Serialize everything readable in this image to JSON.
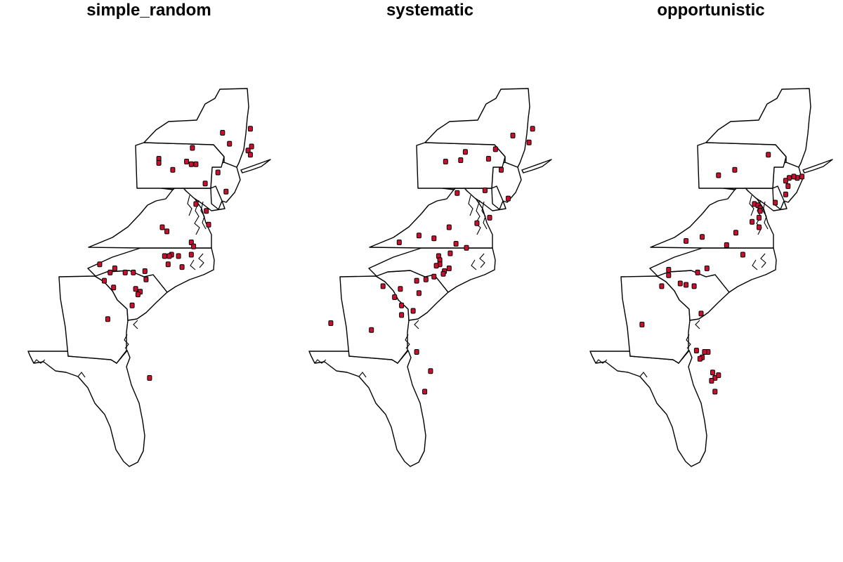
{
  "point_color": "#c8102e",
  "panels": [
    {
      "title": "simple_random",
      "points": [
        [
          -74.3,
          44.5
        ],
        [
          -71.9,
          44.8
        ],
        [
          -73.7,
          43.7
        ],
        [
          -71.8,
          43.5
        ],
        [
          -72.1,
          43.2
        ],
        [
          -71.9,
          42.9
        ],
        [
          -76.9,
          43.4
        ],
        [
          -79.8,
          42.6
        ],
        [
          -79.8,
          42.3
        ],
        [
          -77.4,
          42.4
        ],
        [
          -77.0,
          42.2
        ],
        [
          -76.6,
          42.2
        ],
        [
          -78.6,
          41.8
        ],
        [
          -74.7,
          41.6
        ],
        [
          -75.8,
          40.8
        ],
        [
          -74.0,
          40.2
        ],
        [
          -76.6,
          39.3
        ],
        [
          -75.7,
          38.8
        ],
        [
          -75.5,
          37.8
        ],
        [
          -79.5,
          37.6
        ],
        [
          -79.1,
          37.3
        ],
        [
          -77.0,
          36.5
        ],
        [
          -76.8,
          36.2
        ],
        [
          -78.7,
          35.6
        ],
        [
          -79.3,
          35.5
        ],
        [
          -78.9,
          35.5
        ],
        [
          -78.1,
          35.5
        ],
        [
          -77.0,
          35.6
        ],
        [
          -79.0,
          34.9
        ],
        [
          -77.8,
          34.7
        ],
        [
          -84.9,
          34.9
        ],
        [
          -83.6,
          34.6
        ],
        [
          -82.0,
          34.3
        ],
        [
          -81.0,
          34.4
        ],
        [
          -82.7,
          34.3
        ],
        [
          -84.0,
          34.3
        ],
        [
          -84.5,
          33.7
        ],
        [
          -83.7,
          33.2
        ],
        [
          -80.9,
          33.8
        ],
        [
          -81.8,
          33.1
        ],
        [
          -81.4,
          32.9
        ],
        [
          -81.6,
          32.7
        ],
        [
          -82.1,
          31.9
        ],
        [
          -84.2,
          30.9
        ],
        [
          -80.6,
          26.6
        ]
      ]
    },
    {
      "title": "systematic",
      "points": [
        [
          -71.8,
          44.8
        ],
        [
          -73.5,
          44.3
        ],
        [
          -72.1,
          43.8
        ],
        [
          -75.0,
          43.3
        ],
        [
          -77.6,
          43.1
        ],
        [
          -79.3,
          42.4
        ],
        [
          -78.0,
          42.5
        ],
        [
          -75.6,
          42.6
        ],
        [
          -74.5,
          41.8
        ],
        [
          -75.9,
          40.3
        ],
        [
          -78.3,
          40.1
        ],
        [
          -73.9,
          39.7
        ],
        [
          -75.5,
          38.3
        ],
        [
          -76.6,
          37.9
        ],
        [
          -79.0,
          37.6
        ],
        [
          -81.6,
          37.0
        ],
        [
          -80.3,
          36.8
        ],
        [
          -83.3,
          36.5
        ],
        [
          -78.4,
          36.4
        ],
        [
          -77.5,
          36.1
        ],
        [
          -78.9,
          35.7
        ],
        [
          -79.9,
          35.5
        ],
        [
          -79.8,
          35.2
        ],
        [
          -79.8,
          34.9
        ],
        [
          -80.1,
          34.8
        ],
        [
          -79.0,
          34.6
        ],
        [
          -79.4,
          34.4
        ],
        [
          -79.5,
          34.2
        ],
        [
          -80.3,
          34.0
        ],
        [
          -81.0,
          33.8
        ],
        [
          -81.8,
          33.7
        ],
        [
          -84.7,
          33.3
        ],
        [
          -83.2,
          33.1
        ],
        [
          -81.6,
          32.8
        ],
        [
          -83.7,
          32.5
        ],
        [
          -83.1,
          31.9
        ],
        [
          -82.1,
          31.5
        ],
        [
          -83.1,
          31.2
        ],
        [
          -89.2,
          30.6
        ],
        [
          -85.7,
          30.1
        ],
        [
          -81.8,
          28.5
        ],
        [
          -80.6,
          27.1
        ],
        [
          -81.1,
          25.6
        ]
      ]
    },
    {
      "title": "opportunistic",
      "points": [
        [
          -75.7,
          42.9
        ],
        [
          -78.6,
          41.8
        ],
        [
          -80.0,
          41.4
        ],
        [
          -72.8,
          41.3
        ],
        [
          -73.2,
          41.2
        ],
        [
          -73.5,
          41.3
        ],
        [
          -73.9,
          41.2
        ],
        [
          -74.2,
          41.0
        ],
        [
          -74.0,
          40.6
        ],
        [
          -74.2,
          40.0
        ],
        [
          -76.9,
          39.3
        ],
        [
          -76.6,
          39.2
        ],
        [
          -76.4,
          39.0
        ],
        [
          -75.1,
          39.4
        ],
        [
          -76.4,
          38.8
        ],
        [
          -76.5,
          38.3
        ],
        [
          -77.1,
          38.0
        ],
        [
          -76.5,
          37.6
        ],
        [
          -78.5,
          37.2
        ],
        [
          -81.4,
          36.9
        ],
        [
          -82.8,
          36.6
        ],
        [
          -79.3,
          36.3
        ],
        [
          -77.9,
          35.6
        ],
        [
          -81.0,
          34.6
        ],
        [
          -84.3,
          34.5
        ],
        [
          -84.3,
          34.1
        ],
        [
          -81.8,
          34.3
        ],
        [
          -83.3,
          33.5
        ],
        [
          -82.8,
          33.4
        ],
        [
          -82.1,
          33.3
        ],
        [
          -84.9,
          33.3
        ],
        [
          -81.5,
          31.3
        ],
        [
          -86.6,
          30.5
        ],
        [
          -81.9,
          28.6
        ],
        [
          -80.9,
          28.5
        ],
        [
          -81.4,
          28.1
        ],
        [
          -81.6,
          28.0
        ],
        [
          -81.2,
          28.5
        ],
        [
          -80.5,
          27.0
        ],
        [
          -80.3,
          26.6
        ],
        [
          -80.6,
          26.4
        ],
        [
          -80.0,
          26.8
        ],
        [
          -80.3,
          25.6
        ]
      ]
    }
  ]
}
